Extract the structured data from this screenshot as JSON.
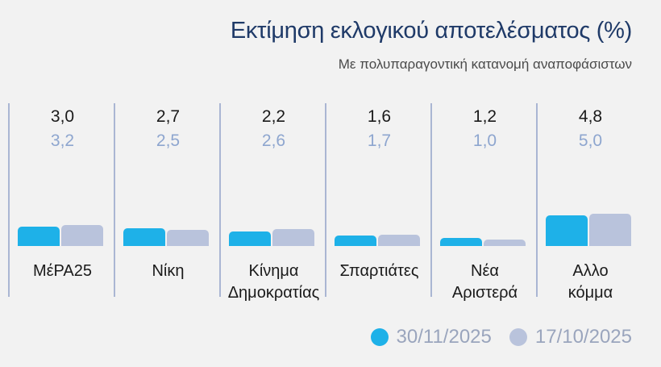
{
  "title": "Εκτίμηση εκλογικού αποτελέσματος (%)",
  "subtitle": "Με πολυπαραγοντική κατανομή αναποφάσιστων",
  "colors": {
    "series1": "#1eb1e8",
    "series2": "#b9c3dc",
    "separator": "#aab6d3"
  },
  "chart_data": {
    "type": "bar",
    "title": "Εκτίμηση εκλογικού αποτελέσματος (%)",
    "subtitle": "Με πολυπαραγοντική κατανομή αναποφάσιστων",
    "categories": [
      "ΜέΡΑ25",
      "Νίκη",
      "Κίνημα\nΔημοκρατίας",
      "Σπαρτιάτες",
      "Νέα\nΑριστερά",
      "Αλλο\nκόμμα"
    ],
    "series": [
      {
        "name": "30/11/2025",
        "values": [
          3.0,
          2.7,
          2.2,
          1.6,
          1.2,
          4.8
        ],
        "labels": [
          "3,0",
          "2,7",
          "2,2",
          "1,6",
          "1,2",
          "4,8"
        ]
      },
      {
        "name": "17/10/2025",
        "values": [
          3.2,
          2.5,
          2.6,
          1.7,
          1.0,
          5.0
        ],
        "labels": [
          "3,2",
          "2,5",
          "2,6",
          "1,7",
          "1,0",
          "5,0"
        ]
      }
    ],
    "legend": "bottom-right",
    "grid": false
  }
}
